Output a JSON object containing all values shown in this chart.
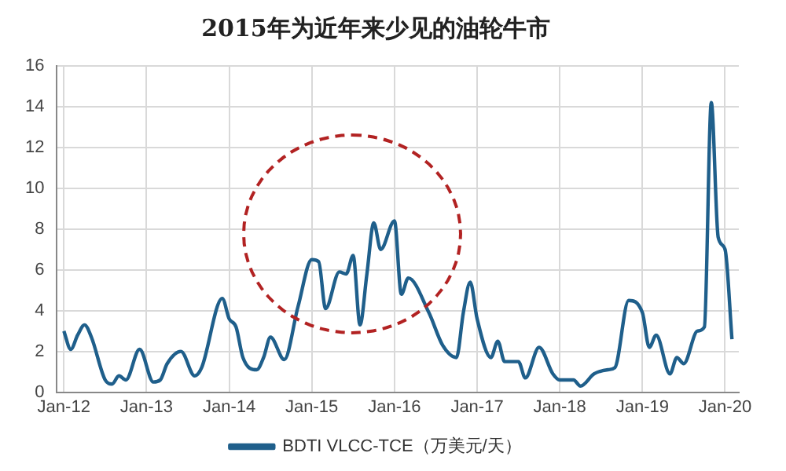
{
  "chart_data": {
    "type": "line",
    "title": "2015年为近年来少见的油轮牛市",
    "x": [
      "2012-01",
      "2012-02",
      "2012-03",
      "2012-04",
      "2012-05",
      "2012-07",
      "2012-08",
      "2012-09",
      "2012-10",
      "2012-12",
      "2013-02",
      "2013-03",
      "2013-04",
      "2013-06",
      "2013-08",
      "2013-09",
      "2013-12",
      "2014-01",
      "2014-02",
      "2014-03",
      "2014-05",
      "2014-06",
      "2014-07",
      "2014-09",
      "2014-11",
      "2015-01",
      "2015-02",
      "2015-03",
      "2015-05",
      "2015-06",
      "2015-07",
      "2015-08",
      "2015-09",
      "2015-10",
      "2015-11",
      "2016-01",
      "2016-02",
      "2016-03",
      "2016-06",
      "2016-08",
      "2016-10",
      "2016-11",
      "2016-12",
      "2017-01",
      "2017-03",
      "2017-04",
      "2017-05",
      "2017-07",
      "2017-08",
      "2017-10",
      "2017-12",
      "2018-01",
      "2018-03",
      "2018-04",
      "2018-06",
      "2018-08",
      "2018-09",
      "2018-11",
      "2019-01",
      "2019-02",
      "2019-03",
      "2019-05",
      "2019-06",
      "2019-07",
      "2019-09",
      "2019-10",
      "2019-11",
      "2019-12",
      "2020-01",
      "2020-02"
    ],
    "series": [
      {
        "name": "BDTI VLCC-TCE（万美元/天）",
        "color": "#1f5f8b",
        "values": [
          3.0,
          2.1,
          2.8,
          3.3,
          2.7,
          0.6,
          0.4,
          0.8,
          0.6,
          2.1,
          0.5,
          0.6,
          1.4,
          2.0,
          0.8,
          1.2,
          4.6,
          3.6,
          3.2,
          1.7,
          1.1,
          1.7,
          2.7,
          1.6,
          4.2,
          6.5,
          6.4,
          4.1,
          5.9,
          5.8,
          6.7,
          3.3,
          5.8,
          8.3,
          7.0,
          8.4,
          4.8,
          5.6,
          3.9,
          2.3,
          1.7,
          3.9,
          5.4,
          3.6,
          1.7,
          2.5,
          1.5,
          1.5,
          0.7,
          2.2,
          0.9,
          0.6,
          0.6,
          0.3,
          0.9,
          1.1,
          1.2,
          4.5,
          3.9,
          2.2,
          2.8,
          0.9,
          1.7,
          1.4,
          3.0,
          3.2,
          14.2,
          7.6,
          7.0,
          2.6
        ]
      }
    ],
    "xlim": [
      "2011-12",
      "2020-03"
    ],
    "xticks": [
      {
        "value": "2012-01",
        "label": "Jan-12"
      },
      {
        "value": "2013-01",
        "label": "Jan-13"
      },
      {
        "value": "2014-01",
        "label": "Jan-14"
      },
      {
        "value": "2015-01",
        "label": "Jan-15"
      },
      {
        "value": "2016-01",
        "label": "Jan-16"
      },
      {
        "value": "2017-01",
        "label": "Jan-17"
      },
      {
        "value": "2018-01",
        "label": "Jan-18"
      },
      {
        "value": "2019-01",
        "label": "Jan-19"
      },
      {
        "value": "2020-01",
        "label": "Jan-20"
      }
    ],
    "ylim": [
      0,
      16
    ],
    "yticks": [
      0,
      2,
      4,
      6,
      8,
      10,
      12,
      14,
      16
    ],
    "grid": true,
    "legend": "bottom",
    "marker": "none",
    "line_style": "solid"
  }
}
